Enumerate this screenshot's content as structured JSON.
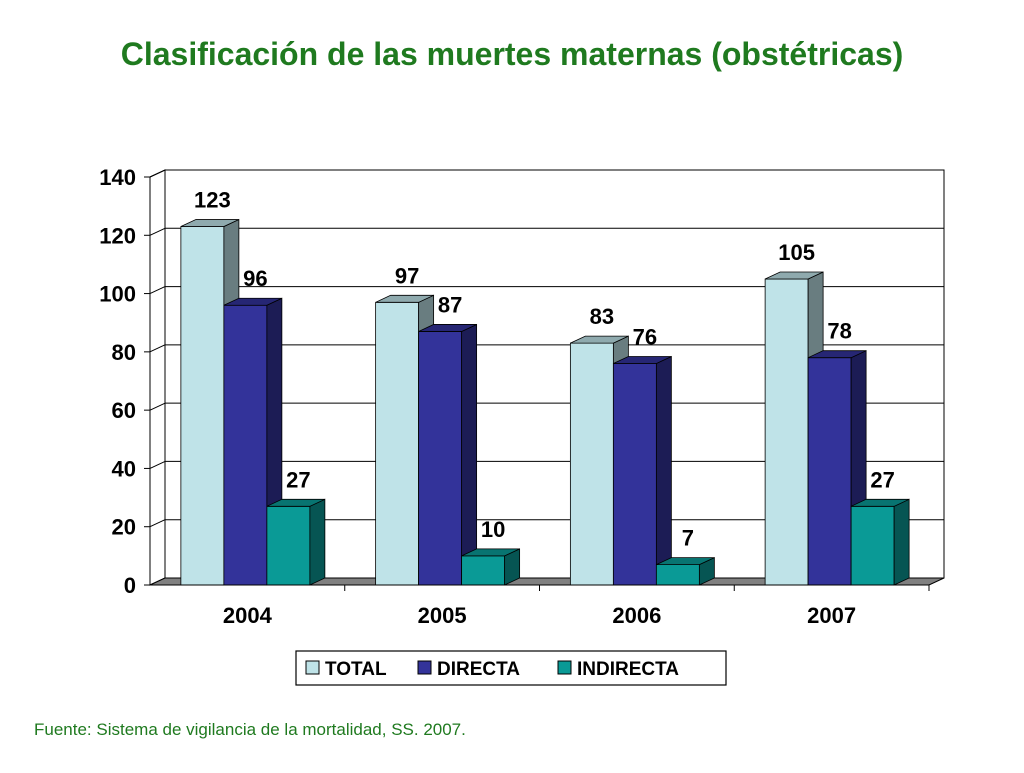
{
  "slide": {
    "title": "Clasificación de las muertes maternas (obstétricas)",
    "source": "Fuente: Sistema de vigilancia de la mortalidad, SS. 2007."
  },
  "chart_data": {
    "type": "bar",
    "title": "",
    "xlabel": "",
    "ylabel": "",
    "categories": [
      "2004",
      "2005",
      "2006",
      "2007"
    ],
    "series": [
      {
        "name": "TOTAL",
        "values": [
          123,
          97,
          83,
          105
        ],
        "color": "#bfe3e8"
      },
      {
        "name": "DIRECTA",
        "values": [
          96,
          87,
          76,
          78
        ],
        "color": "#33339a"
      },
      {
        "name": "INDIRECTA",
        "values": [
          27,
          10,
          7,
          27
        ],
        "color": "#0a9a96"
      }
    ],
    "ylim": [
      0,
      140
    ],
    "yticks": [
      0,
      20,
      40,
      60,
      80,
      100,
      120,
      140
    ],
    "grid": true,
    "legend": "bottom",
    "three_d": true
  }
}
